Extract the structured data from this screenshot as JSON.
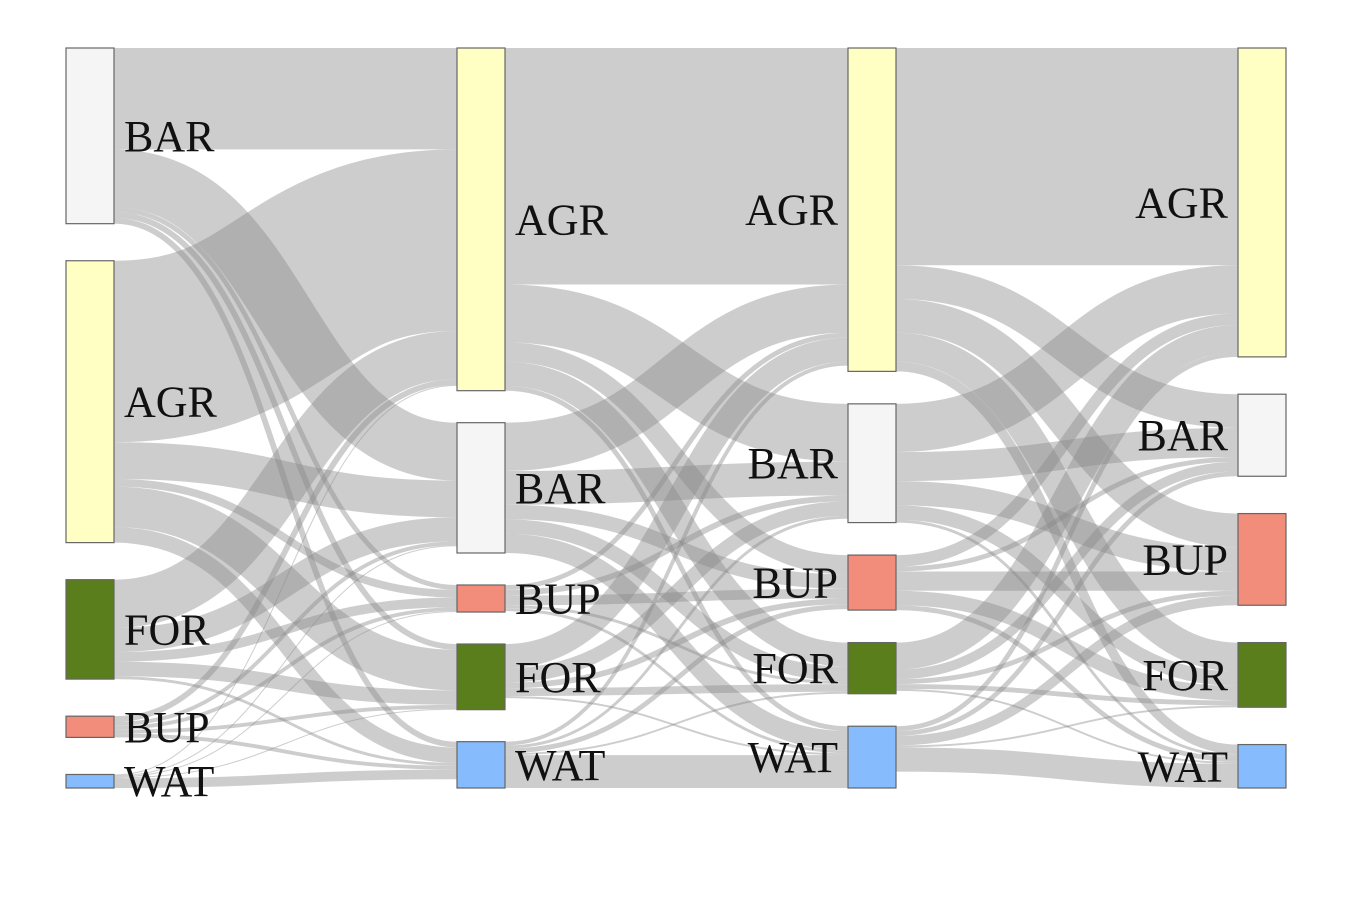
{
  "diagram": {
    "type": "sankey",
    "node_stroke": "#666666",
    "link_color": "#888888",
    "columns": [
      {
        "nodes": [
          {
            "id": "BAR",
            "label": "BAR",
            "color": "#f5f5f5"
          },
          {
            "id": "AGR",
            "label": "AGR",
            "color": "#ffffc4"
          },
          {
            "id": "FOR",
            "label": "FOR",
            "color": "#5b7e1c"
          },
          {
            "id": "BUP",
            "label": "BUP",
            "color": "#f28c7b"
          },
          {
            "id": "WAT",
            "label": "WAT",
            "color": "#86bbfd"
          }
        ]
      },
      {
        "nodes": [
          {
            "id": "AGR",
            "label": "AGR",
            "color": "#ffffc4"
          },
          {
            "id": "BAR",
            "label": "BAR",
            "color": "#f5f5f5"
          },
          {
            "id": "BUP",
            "label": "BUP",
            "color": "#f28c7b"
          },
          {
            "id": "FOR",
            "label": "FOR",
            "color": "#5b7e1c"
          },
          {
            "id": "WAT",
            "label": "WAT",
            "color": "#86bbfd"
          }
        ]
      },
      {
        "nodes": [
          {
            "id": "AGR",
            "label": "AGR",
            "color": "#ffffc4"
          },
          {
            "id": "BAR",
            "label": "BAR",
            "color": "#f5f5f5"
          },
          {
            "id": "BUP",
            "label": "BUP",
            "color": "#f28c7b"
          },
          {
            "id": "FOR",
            "label": "FOR",
            "color": "#5b7e1c"
          },
          {
            "id": "WAT",
            "label": "WAT",
            "color": "#86bbfd"
          }
        ]
      },
      {
        "nodes": [
          {
            "id": "AGR",
            "label": "AGR",
            "color": "#ffffc4"
          },
          {
            "id": "BAR",
            "label": "BAR",
            "color": "#f5f5f5"
          },
          {
            "id": "BUP",
            "label": "BUP",
            "color": "#f28c7b"
          },
          {
            "id": "FOR",
            "label": "FOR",
            "color": "#5b7e1c"
          },
          {
            "id": "WAT",
            "label": "WAT",
            "color": "#86bbfd"
          }
        ]
      }
    ],
    "flows": [
      [
        [
          "BAR",
          "AGR",
          105
        ],
        [
          "BAR",
          "BAR",
          60
        ],
        [
          "BAR",
          "BUP",
          5
        ],
        [
          "BAR",
          "FOR",
          6
        ],
        [
          "BAR",
          "WAT",
          6
        ],
        [
          "AGR",
          "AGR",
          188
        ],
        [
          "AGR",
          "BAR",
          38
        ],
        [
          "AGR",
          "BUP",
          8
        ],
        [
          "AGR",
          "FOR",
          42
        ],
        [
          "AGR",
          "WAT",
          16
        ],
        [
          "FOR",
          "AGR",
          50
        ],
        [
          "FOR",
          "BAR",
          25
        ],
        [
          "FOR",
          "BUP",
          10
        ],
        [
          "FOR",
          "FOR",
          15
        ],
        [
          "FOR",
          "WAT",
          3
        ],
        [
          "BUP",
          "AGR",
          6
        ],
        [
          "BUP",
          "BAR",
          4
        ],
        [
          "BUP",
          "BUP",
          4
        ],
        [
          "BUP",
          "FOR",
          4
        ],
        [
          "BUP",
          "WAT",
          4
        ],
        [
          "WAT",
          "AGR",
          1
        ],
        [
          "WAT",
          "BAR",
          1
        ],
        [
          "WAT",
          "BUP",
          1
        ],
        [
          "WAT",
          "FOR",
          1
        ],
        [
          "WAT",
          "WAT",
          10
        ]
      ],
      [
        [
          "AGR",
          "AGR",
          245
        ],
        [
          "AGR",
          "BAR",
          60
        ],
        [
          "AGR",
          "BUP",
          20
        ],
        [
          "AGR",
          "FOR",
          25
        ],
        [
          "AGR",
          "WAT",
          5
        ],
        [
          "BAR",
          "AGR",
          50
        ],
        [
          "BAR",
          "BAR",
          35
        ],
        [
          "BAR",
          "BUP",
          15
        ],
        [
          "BAR",
          "FOR",
          15
        ],
        [
          "BAR",
          "WAT",
          20
        ],
        [
          "BUP",
          "AGR",
          5
        ],
        [
          "BUP",
          "BAR",
          6
        ],
        [
          "BUP",
          "BUP",
          10
        ],
        [
          "BUP",
          "FOR",
          3
        ],
        [
          "BUP",
          "WAT",
          3
        ],
        [
          "FOR",
          "AGR",
          25
        ],
        [
          "FOR",
          "BAR",
          15
        ],
        [
          "FOR",
          "BUP",
          6
        ],
        [
          "FOR",
          "FOR",
          8
        ],
        [
          "FOR",
          "WAT",
          2
        ],
        [
          "WAT",
          "AGR",
          4
        ],
        [
          "WAT",
          "BAR",
          3
        ],
        [
          "WAT",
          "BUP",
          5
        ],
        [
          "WAT",
          "FOR",
          2
        ],
        [
          "WAT",
          "WAT",
          34
        ]
      ],
      [
        [
          "AGR",
          "AGR",
          225
        ],
        [
          "AGR",
          "BAR",
          35
        ],
        [
          "AGR",
          "BUP",
          35
        ],
        [
          "AGR",
          "FOR",
          30
        ],
        [
          "AGR",
          "WAT",
          10
        ],
        [
          "BAR",
          "AGR",
          50
        ],
        [
          "BAR",
          "BAR",
          30
        ],
        [
          "BAR",
          "BUP",
          25
        ],
        [
          "BAR",
          "FOR",
          15
        ],
        [
          "BAR",
          "WAT",
          3
        ],
        [
          "BUP",
          "AGR",
          12
        ],
        [
          "BUP",
          "BAR",
          5
        ],
        [
          "BUP",
          "BUP",
          20
        ],
        [
          "BUP",
          "FOR",
          15
        ],
        [
          "BUP",
          "WAT",
          5
        ],
        [
          "FOR",
          "AGR",
          28
        ],
        [
          "FOR",
          "BAR",
          10
        ],
        [
          "FOR",
          "BUP",
          5
        ],
        [
          "FOR",
          "FOR",
          5
        ],
        [
          "FOR",
          "WAT",
          2
        ],
        [
          "WAT",
          "AGR",
          5
        ],
        [
          "WAT",
          "BAR",
          5
        ],
        [
          "WAT",
          "BUP",
          10
        ],
        [
          "WAT",
          "FOR",
          2
        ],
        [
          "WAT",
          "WAT",
          25
        ]
      ]
    ]
  }
}
